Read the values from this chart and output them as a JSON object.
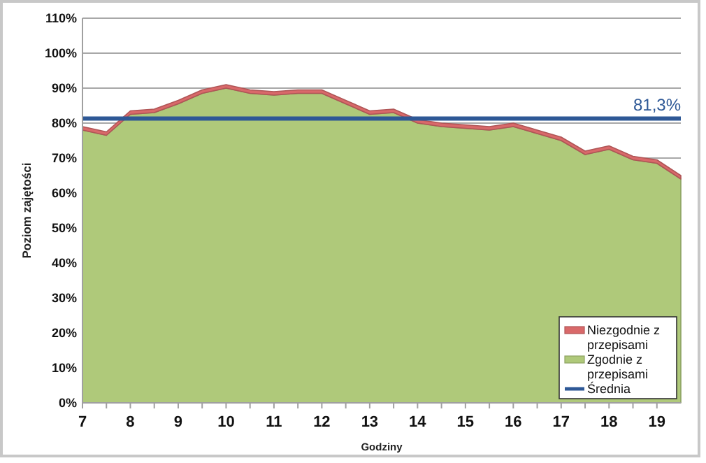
{
  "chart_data": {
    "type": "area",
    "stacked": true,
    "xlabel": "Godziny",
    "ylabel": "Poziom zajętości",
    "x": [
      7,
      7.5,
      8,
      8.5,
      9,
      9.5,
      10,
      10.5,
      11,
      11.5,
      12,
      12.5,
      13,
      13.5,
      14,
      14.5,
      15,
      15.5,
      16,
      16.5,
      17,
      17.5,
      18,
      18.5,
      19,
      19.5
    ],
    "series": [
      {
        "name": "Zgodnie z przepisami",
        "color": "#afc97a",
        "values": [
          78,
          76.5,
          82.5,
          83,
          85.5,
          88.5,
          90,
          88.5,
          88,
          88.5,
          88.5,
          85.5,
          82.5,
          83,
          80,
          79,
          78.5,
          78,
          79,
          77,
          75,
          71,
          72.5,
          69.5,
          68.5,
          64
        ]
      },
      {
        "name": "Niezgodnie z przepisami",
        "color": "#d9696a",
        "values": [
          1,
          1,
          1,
          1,
          1,
          1,
          1,
          1,
          1,
          1,
          1,
          1,
          1,
          1,
          1,
          1,
          1,
          1,
          1,
          1,
          1,
          1,
          1,
          1,
          1,
          1
        ]
      },
      {
        "name": "Średnia",
        "type": "line",
        "color": "#2e5896",
        "values": [
          81.3,
          81.3,
          81.3,
          81.3,
          81.3,
          81.3,
          81.3,
          81.3,
          81.3,
          81.3,
          81.3,
          81.3,
          81.3,
          81.3,
          81.3,
          81.3,
          81.3,
          81.3,
          81.3,
          81.3,
          81.3,
          81.3,
          81.3,
          81.3,
          81.3,
          81.3
        ],
        "value_labels": [
          null,
          null,
          null,
          null,
          null,
          null,
          null,
          null,
          null,
          null,
          null,
          null,
          null,
          null,
          null,
          null,
          null,
          null,
          null,
          null,
          null,
          null,
          null,
          null,
          null,
          "81,3%"
        ]
      }
    ],
    "xlim": [
      7,
      19.5
    ],
    "xticks": [
      7,
      {
        "value": 7.5,
        "label": null
      },
      8,
      {
        "value": 8.5,
        "label": null
      },
      9,
      {
        "value": 9.5,
        "label": null
      },
      10,
      {
        "value": 10.5,
        "label": null
      },
      11,
      {
        "value": 11.5,
        "label": null
      },
      12,
      {
        "value": 12.5,
        "label": null
      },
      13,
      {
        "value": 13.5,
        "label": null
      },
      14,
      {
        "value": 14.5,
        "label": null
      },
      15,
      {
        "value": 15.5,
        "label": null
      },
      16,
      {
        "value": 16.5,
        "label": null
      },
      17,
      {
        "value": 17.5,
        "label": null
      },
      18,
      {
        "value": 18.5,
        "label": null
      },
      19
    ],
    "ylim": [
      0,
      110
    ],
    "yticks": [
      {
        "value": 0,
        "label": "0%"
      },
      {
        "value": 10,
        "label": "10%"
      },
      {
        "value": 20,
        "label": "20%"
      },
      {
        "value": 30,
        "label": "30%"
      },
      {
        "value": 40,
        "label": "40%"
      },
      {
        "value": 50,
        "label": "50%"
      },
      {
        "value": 60,
        "label": "60%"
      },
      {
        "value": 70,
        "label": "70%"
      },
      {
        "value": 80,
        "label": "80%"
      },
      {
        "value": 90,
        "label": "90%"
      },
      {
        "value": 100,
        "label": "100%"
      },
      {
        "value": 110,
        "label": "110%"
      }
    ],
    "grid": "y",
    "legend": "bottom right"
  }
}
